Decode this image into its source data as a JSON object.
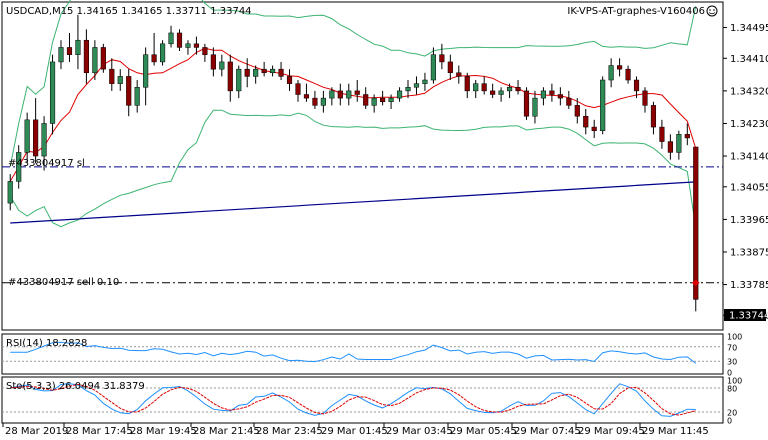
{
  "header": {
    "symbol_line": "USDCAD,M15  1.34165 1.34165 1.33711 1.33744",
    "right_label": "IK-VPS-AT-graphes-V160406"
  },
  "main": {
    "price_labels": [
      "1.34495",
      "1.34410",
      "1.34320",
      "1.34230",
      "1.34140",
      "1.34055",
      "1.33965",
      "1.33875",
      "1.33785",
      "1.33700"
    ],
    "current_price": "1.33744",
    "sl_line_label": "#433804917 sl",
    "sell_line_label": "#433804917 sell 0.10"
  },
  "rsi": {
    "label": "RSI(14) 18.2828",
    "levels": [
      "100",
      "70",
      "30",
      "0"
    ]
  },
  "stoch": {
    "label": "Sto(5,3,3) 26.0494 31.8379",
    "levels": [
      "100",
      "80",
      "20",
      "0"
    ]
  },
  "time_axis": [
    "28 Mar 2019",
    "28 Mar 17:45",
    "28 Mar 19:45",
    "28 Mar 21:45",
    "28 Mar 23:45",
    "29 Mar 01:45",
    "29 Mar 03:45",
    "29 Mar 05:45",
    "29 Mar 07:45",
    "29 Mar 09:45",
    "29 Mar 11:45"
  ],
  "colors": {
    "bull": "#2e8b57",
    "bear": "#8b0000",
    "bollinger": "#3cb371",
    "ma_fast": "#e00000",
    "ma_slow": "#00008b",
    "rsi_line": "#1e90ff",
    "stoch_main": "#1e90ff",
    "stoch_signal": "#e00000",
    "order_line": "#00008b"
  },
  "chart_data": {
    "type": "candlestick",
    "symbol": "USDCAD",
    "timeframe": "M15",
    "ohlc_last": {
      "open": 1.34165,
      "high": 1.34165,
      "low": 1.33711,
      "close": 1.33744
    },
    "ylim": [
      1.33665,
      1.3456
    ],
    "y_ticks": [
      1.34495,
      1.3441,
      1.3432,
      1.3423,
      1.3414,
      1.34055,
      1.33965,
      1.33875,
      1.33785,
      1.337
    ],
    "sl_level": 1.3411,
    "sell_level": 1.3379,
    "candles": [
      [
        1.3401,
        1.3409,
        1.3399,
        1.3407
      ],
      [
        1.3407,
        1.3417,
        1.3405,
        1.3415
      ],
      [
        1.3415,
        1.3426,
        1.3412,
        1.3424
      ],
      [
        1.3424,
        1.343,
        1.3412,
        1.3414
      ],
      [
        1.3414,
        1.3425,
        1.341,
        1.3423
      ],
      [
        1.3423,
        1.3442,
        1.342,
        1.344
      ],
      [
        1.344,
        1.3446,
        1.3438,
        1.3444
      ],
      [
        1.3444,
        1.3448,
        1.344,
        1.3442
      ],
      [
        1.3442,
        1.3453,
        1.3438,
        1.3446
      ],
      [
        1.3446,
        1.3449,
        1.3434,
        1.3437
      ],
      [
        1.3437,
        1.3446,
        1.3435,
        1.3444
      ],
      [
        1.3444,
        1.3445,
        1.3437,
        1.3438
      ],
      [
        1.3438,
        1.3441,
        1.3432,
        1.3434
      ],
      [
        1.3434,
        1.3438,
        1.3432,
        1.3436
      ],
      [
        1.3436,
        1.3438,
        1.3425,
        1.3428
      ],
      [
        1.3428,
        1.3435,
        1.3426,
        1.3433
      ],
      [
        1.3433,
        1.3444,
        1.3428,
        1.3442
      ],
      [
        1.3442,
        1.3448,
        1.3439,
        1.344
      ],
      [
        1.344,
        1.3446,
        1.3439,
        1.3445
      ],
      [
        1.3445,
        1.345,
        1.3444,
        1.3448
      ],
      [
        1.3448,
        1.3449,
        1.3443,
        1.3444
      ],
      [
        1.3444,
        1.3446,
        1.3442,
        1.3445
      ],
      [
        1.3445,
        1.3447,
        1.3442,
        1.3444
      ],
      [
        1.3444,
        1.3445,
        1.344,
        1.3442
      ],
      [
        1.3442,
        1.3444,
        1.3436,
        1.3438
      ],
      [
        1.3438,
        1.3442,
        1.3436,
        1.344
      ],
      [
        1.344,
        1.3442,
        1.3429,
        1.3432
      ],
      [
        1.3432,
        1.3439,
        1.343,
        1.3438
      ],
      [
        1.3438,
        1.3441,
        1.3433,
        1.3436
      ],
      [
        1.3436,
        1.3439,
        1.3434,
        1.3438
      ],
      [
        1.3438,
        1.344,
        1.3436,
        1.3437
      ],
      [
        1.3437,
        1.3439,
        1.3436,
        1.3438
      ],
      [
        1.3438,
        1.344,
        1.3435,
        1.3436
      ],
      [
        1.3436,
        1.3438,
        1.3432,
        1.3434
      ],
      [
        1.3434,
        1.3435,
        1.3429,
        1.3431
      ],
      [
        1.3431,
        1.3434,
        1.3429,
        1.343
      ],
      [
        1.343,
        1.3432,
        1.3427,
        1.3428
      ],
      [
        1.3428,
        1.3432,
        1.3426,
        1.343
      ],
      [
        1.343,
        1.3433,
        1.3428,
        1.3432
      ],
      [
        1.3432,
        1.3434,
        1.3428,
        1.343
      ],
      [
        1.343,
        1.3434,
        1.3428,
        1.3432
      ],
      [
        1.3432,
        1.3435,
        1.3429,
        1.3431
      ],
      [
        1.3431,
        1.3433,
        1.3427,
        1.3428
      ],
      [
        1.3428,
        1.3431,
        1.3426,
        1.343
      ],
      [
        1.343,
        1.3432,
        1.3428,
        1.3429
      ],
      [
        1.3429,
        1.3431,
        1.3427,
        1.343
      ],
      [
        1.343,
        1.3433,
        1.3429,
        1.3432
      ],
      [
        1.3432,
        1.3435,
        1.343,
        1.3433
      ],
      [
        1.3433,
        1.3436,
        1.3431,
        1.3434
      ],
      [
        1.3434,
        1.3437,
        1.3432,
        1.3435
      ],
      [
        1.3435,
        1.3444,
        1.3434,
        1.3442
      ],
      [
        1.3442,
        1.3445,
        1.3438,
        1.344
      ],
      [
        1.344,
        1.3442,
        1.3435,
        1.3437
      ],
      [
        1.3437,
        1.3439,
        1.3434,
        1.3436
      ],
      [
        1.3436,
        1.3437,
        1.343,
        1.3432
      ],
      [
        1.3432,
        1.3435,
        1.343,
        1.3434
      ],
      [
        1.3434,
        1.3436,
        1.3431,
        1.3432
      ],
      [
        1.3432,
        1.3434,
        1.343,
        1.3431
      ],
      [
        1.3431,
        1.3433,
        1.3429,
        1.3432
      ],
      [
        1.3432,
        1.3434,
        1.343,
        1.3433
      ],
      [
        1.3433,
        1.3435,
        1.3431,
        1.3432
      ],
      [
        1.3432,
        1.3433,
        1.3424,
        1.3425
      ],
      [
        1.3425,
        1.3432,
        1.3423,
        1.343
      ],
      [
        1.343,
        1.3433,
        1.3428,
        1.3432
      ],
      [
        1.3432,
        1.3434,
        1.3429,
        1.3431
      ],
      [
        1.3431,
        1.3433,
        1.3428,
        1.343
      ],
      [
        1.343,
        1.3432,
        1.3427,
        1.3428
      ],
      [
        1.3428,
        1.343,
        1.3423,
        1.3425
      ],
      [
        1.3425,
        1.3427,
        1.342,
        1.3422
      ],
      [
        1.3422,
        1.3424,
        1.3419,
        1.3421
      ],
      [
        1.3421,
        1.3436,
        1.342,
        1.3435
      ],
      [
        1.3435,
        1.3441,
        1.3433,
        1.3439
      ],
      [
        1.3439,
        1.3441,
        1.3436,
        1.3438
      ],
      [
        1.3438,
        1.3439,
        1.3434,
        1.3435
      ],
      [
        1.3435,
        1.3436,
        1.343,
        1.3432
      ],
      [
        1.3432,
        1.3433,
        1.3426,
        1.3428
      ],
      [
        1.3428,
        1.3429,
        1.342,
        1.3422
      ],
      [
        1.3422,
        1.3424,
        1.3416,
        1.3418
      ],
      [
        1.3418,
        1.342,
        1.3413,
        1.3415
      ],
      [
        1.3415,
        1.3421,
        1.3413,
        1.342
      ],
      [
        1.342,
        1.3423,
        1.3417,
        1.3419
      ],
      [
        1.34165,
        1.34165,
        1.33711,
        1.33744
      ]
    ]
  }
}
